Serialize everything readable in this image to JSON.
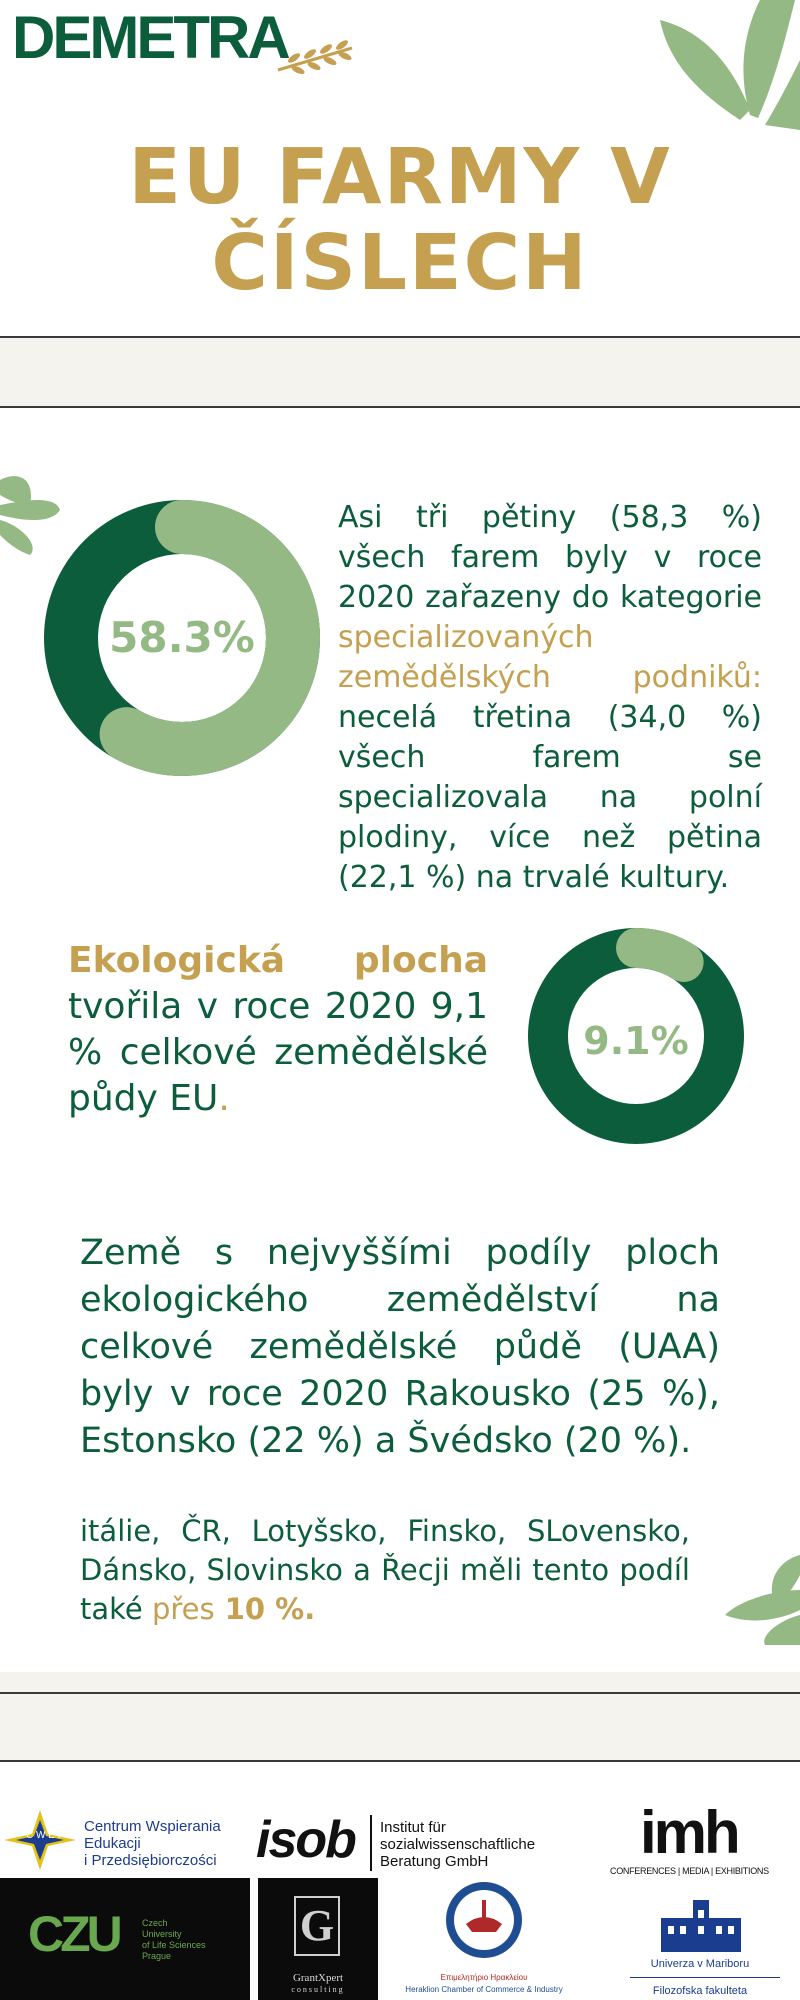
{
  "header": {
    "logo": "DEMETRA",
    "title": "EU FARMY V ČÍSLECH"
  },
  "colors": {
    "green": "#0c5d3c",
    "light_green": "#95b984",
    "gold": "#c4a050",
    "band": "#f4f3ed"
  },
  "stat1": {
    "value_label": "58.3%",
    "value_percent": 58.3,
    "text_a": "Asi tři pětiny (58,3 %) všech farem byly v roce 2020 zařazeny do kategorie ",
    "text_highlight": "specializovaných zemědělských podniků:",
    "text_b": " necelá třetina (34,0 %) všech farem se specializovala na polní plodiny, více než pětina (22,1 %) na trvalé kultury."
  },
  "stat2": {
    "value_label": "9.1%",
    "value_percent": 9.1,
    "text_highlight": "Ekologická plocha",
    "text_a": " tvořila v roce 2020 9,1 % celkové zemědělské půdy EU",
    "text_dot": "."
  },
  "para3": "Země s nejvyššími podíly ploch ekologického zemědělství na celkové zemědělské půdě (UAA) byly v roce 2020 Rakousko (25 %), Estonsko (22 %) a Švédsko (20 %).",
  "para4": {
    "text_a": "itálie, ČR, Lotyšsko, Finsko, SLovensko, Dánsko, Slovinsko a Řecji měli tento podíl také ",
    "text_highlight": "přes",
    "text_bold": " 10 %."
  },
  "partners": {
    "cwep_monogram": "C W E P",
    "cwep_name": [
      "Centrum Wspierania",
      "Edukacji",
      "i Przedsiębiorczości"
    ],
    "isob_word": "isob",
    "isob_name": [
      "Institut für",
      "sozialwissenschaftliche",
      "Beratung GmbH"
    ],
    "imh_word": "imh",
    "imh_sub": "CONFERENCES | MEDIA | EXHIBITIONS",
    "czu_word": "CZU",
    "czu_name": [
      "Czech",
      "University",
      "of Life Sciences",
      "Prague"
    ],
    "grantxpert_letter": "G",
    "grantxpert_name": [
      "GrantXpert",
      "consulting"
    ],
    "heraklion_name": [
      "Επιμελητήριο Ηρακλείου",
      "Heraklion Chamber of Commerce & Industry"
    ],
    "maribor_name": "Univerza v Mariboru",
    "maribor_sub": "Filozofska fakulteta"
  }
}
